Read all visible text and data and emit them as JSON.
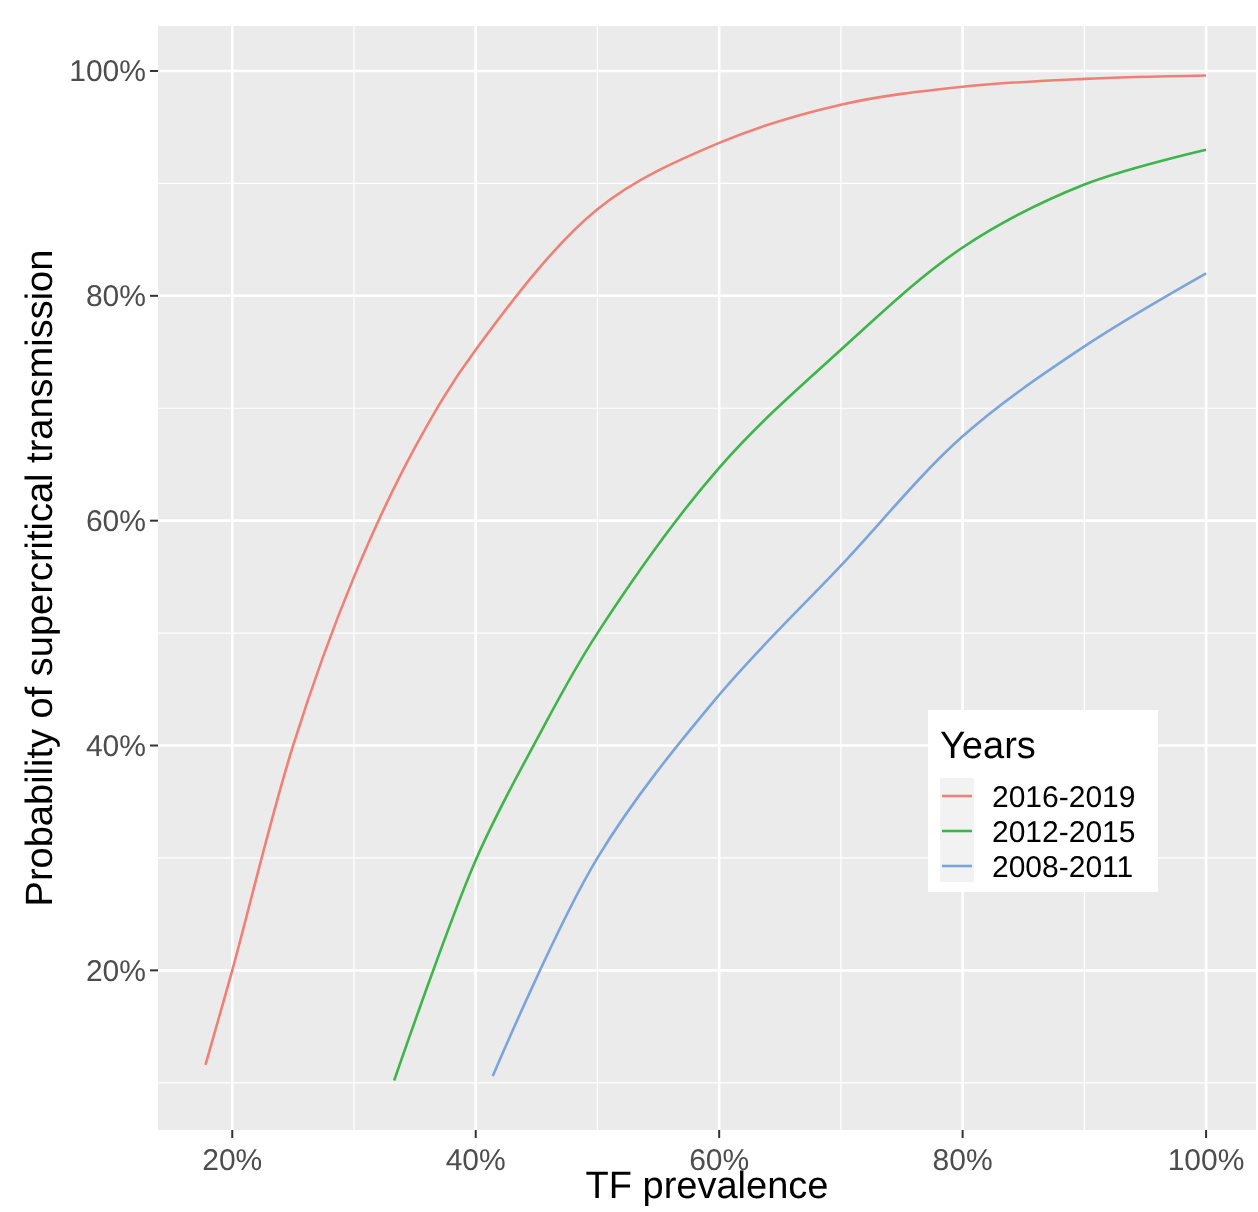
{
  "chart_data": {
    "type": "line",
    "xlabel": "TF prevalence",
    "ylabel": "Probability of supercritical transmission",
    "legend_title": "Years",
    "legend": "right",
    "grid": true,
    "line_style": "solid",
    "marker": "none",
    "xlim": [
      13.9,
      104.1
    ],
    "ylim": [
      5.8,
      104
    ],
    "xticks": [
      {
        "value": 20,
        "label": "20%"
      },
      {
        "value": 40,
        "label": "40%"
      },
      {
        "value": 60,
        "label": "60%"
      },
      {
        "value": 80,
        "label": "80%"
      },
      {
        "value": 100,
        "label": "100%"
      }
    ],
    "yticks": [
      {
        "value": 20,
        "label": "20%"
      },
      {
        "value": 40,
        "label": "40%"
      },
      {
        "value": 60,
        "label": "60%"
      },
      {
        "value": 80,
        "label": "80%"
      },
      {
        "value": 100,
        "label": "100%"
      }
    ],
    "series": [
      {
        "name": "2016-2019",
        "color": "#f07f75",
        "x": [
          17.8,
          20,
          25,
          30,
          35,
          40,
          50,
          60,
          70,
          80,
          90,
          100
        ],
        "values": [
          11.6,
          20,
          40,
          55,
          66.5,
          75.2,
          87.7,
          93.6,
          97,
          98.6,
          99.3,
          99.6
        ]
      },
      {
        "name": "2012-2015",
        "color": "#3db54a",
        "x": [
          33.3,
          40,
          45,
          50,
          60,
          70,
          80,
          90,
          100
        ],
        "values": [
          10.2,
          29.8,
          40.5,
          50,
          64.7,
          75.2,
          84.3,
          89.9,
          93
        ]
      },
      {
        "name": "2008-2011",
        "color": "#7ba3dd",
        "x": [
          41.4,
          50,
          60,
          70,
          80,
          90,
          100
        ],
        "values": [
          10.6,
          30,
          44.5,
          56,
          67.5,
          75.5,
          82
        ]
      }
    ]
  }
}
